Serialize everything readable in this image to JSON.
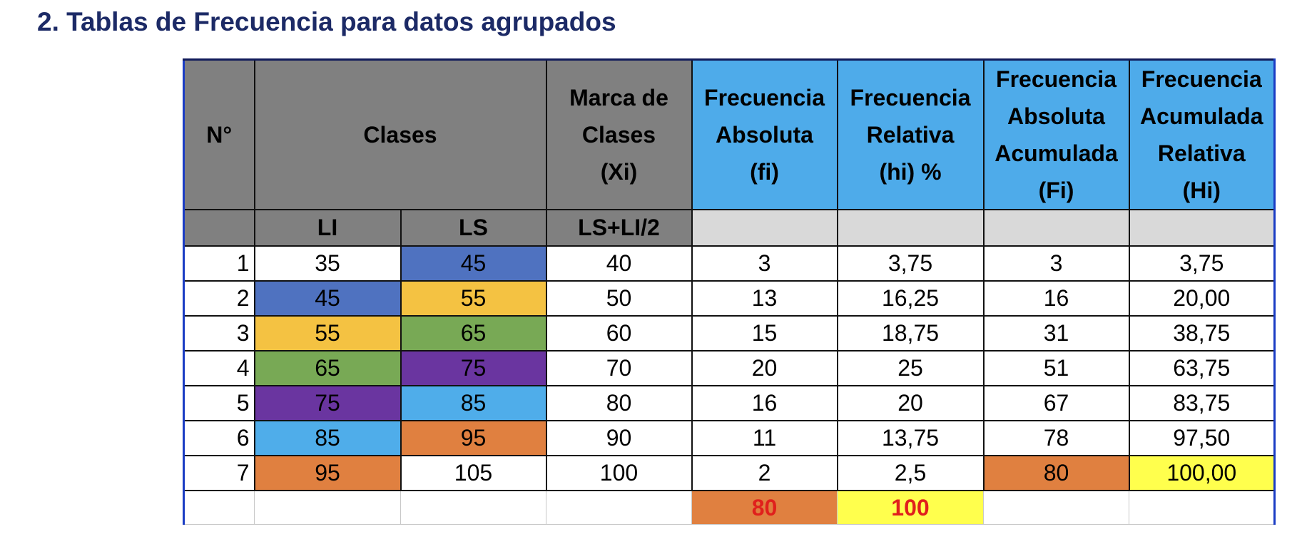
{
  "title": "2. Tablas de Frecuencia para datos agrupados",
  "table": {
    "header": [
      "N°",
      "Clases",
      "Marca de\nClases\n(Xi)",
      "Frecuencia\nAbsoluta\n(fi)",
      "Frecuencia\nRelativa\n(hi) %",
      "Frecuencia\nAbsoluta\nAcumulada\n(Fi)",
      "Frecuencia\nAcumulada\nRelativa\n(Hi)"
    ],
    "subheader": [
      "LI",
      "LS",
      "LS+LI/2"
    ],
    "rows": [
      [
        "1",
        "35",
        "45",
        "40",
        "3",
        "3,75",
        "3",
        "3,75"
      ],
      [
        "2",
        "45",
        "55",
        "50",
        "13",
        "16,25",
        "16",
        "20,00"
      ],
      [
        "3",
        "55",
        "65",
        "60",
        "15",
        "18,75",
        "31",
        "38,75"
      ],
      [
        "4",
        "65",
        "75",
        "70",
        "20",
        "25",
        "51",
        "63,75"
      ],
      [
        "5",
        "75",
        "85",
        "80",
        "16",
        "20",
        "67",
        "83,75"
      ],
      [
        "6",
        "85",
        "95",
        "90",
        "11",
        "13,75",
        "78",
        "97,50"
      ],
      [
        "7",
        "95",
        "105",
        "100",
        "2",
        "2,5",
        "80",
        "100,00"
      ]
    ],
    "totals": [
      "80",
      "100"
    ]
  }
}
